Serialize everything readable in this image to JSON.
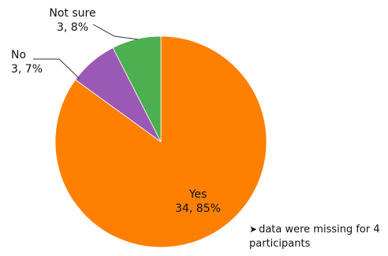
{
  "chart_data": {
    "type": "pie",
    "slices": [
      {
        "label": "Yes",
        "count": 34,
        "percent": 85,
        "color": "#FF8000"
      },
      {
        "label": "No",
        "count": 3,
        "percent": 7,
        "color": "#9B59B6"
      },
      {
        "label": "Not sure",
        "count": 3,
        "percent": 8,
        "color": "#4CAF50"
      }
    ],
    "title": "",
    "legend": "none",
    "annotation": "data were missing for 4 participants"
  },
  "labels": {
    "yes_name": "Yes",
    "yes_value": "34, 85%",
    "no_name": "No",
    "no_value": "3, 7%",
    "notsure_name": "Not sure",
    "notsure_value": "3, 8%"
  },
  "footnote": {
    "marker": "➤",
    "text": "data were missing for 4 participants"
  }
}
